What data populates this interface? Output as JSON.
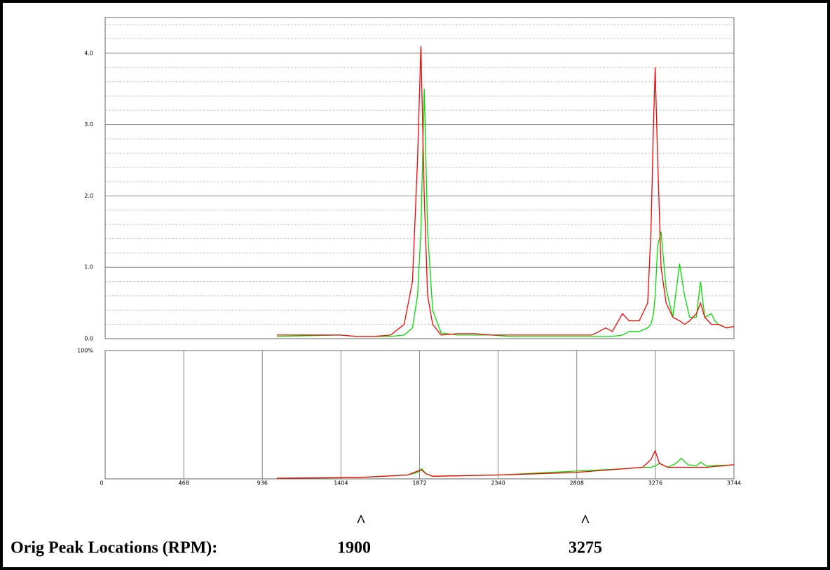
{
  "chart_data": [
    {
      "type": "line",
      "xlim": [
        0,
        3744
      ],
      "ylim": [
        0,
        4.5
      ],
      "yticks": [
        {
          "value": 0,
          "label": "0.0"
        },
        {
          "value": 1,
          "label": "1.0"
        },
        {
          "value": 2,
          "label": "2.0"
        },
        {
          "value": 3,
          "label": "3.0"
        },
        {
          "value": 4,
          "label": "4.0"
        }
      ],
      "yticks_minor": [
        0.2,
        0.4,
        0.6,
        0.8,
        1.2,
        1.4,
        1.6,
        1.8,
        2.2,
        2.4,
        2.6,
        2.8,
        3.2,
        3.4,
        3.6,
        3.8,
        4.2,
        4.4
      ],
      "grid": true,
      "x": [
        1022,
        1400,
        1500,
        1600,
        1700,
        1780,
        1830,
        1860,
        1880,
        1900,
        1920,
        1950,
        2000,
        2100,
        2200,
        2300,
        2400,
        2600,
        2800,
        2900,
        2980,
        3020,
        3080,
        3120,
        3180,
        3230,
        3250,
        3265,
        3275,
        3290,
        3310,
        3340,
        3380,
        3420,
        3450,
        3480,
        3520,
        3545,
        3570,
        3610,
        3630,
        3650,
        3700,
        3744
      ],
      "series": [
        {
          "color": "#00e000",
          "values": [
            0.03,
            0.05,
            0.03,
            0.03,
            0.03,
            0.05,
            0.15,
            0.6,
            1.5,
            3.5,
            1.5,
            0.4,
            0.08,
            0.05,
            0.05,
            0.05,
            0.03,
            0.03,
            0.03,
            0.03,
            0.03,
            0.03,
            0.05,
            0.1,
            0.1,
            0.15,
            0.2,
            0.35,
            0.6,
            1.3,
            1.5,
            0.7,
            0.3,
            1.05,
            0.6,
            0.3,
            0.3,
            0.8,
            0.3,
            0.35,
            0.25,
            0.2,
            0.15,
            0.17
          ]
        },
        {
          "color": "#ff0000",
          "values": [
            0.05,
            0.05,
            0.03,
            0.03,
            0.05,
            0.2,
            0.8,
            2.5,
            4.1,
            2.0,
            0.6,
            0.2,
            0.05,
            0.07,
            0.07,
            0.05,
            0.05,
            0.05,
            0.05,
            0.05,
            0.15,
            0.1,
            0.35,
            0.25,
            0.25,
            0.5,
            1.5,
            3.0,
            3.8,
            2.5,
            1.0,
            0.5,
            0.3,
            0.25,
            0.2,
            0.25,
            0.35,
            0.5,
            0.3,
            0.2,
            0.2,
            0.2,
            0.15,
            0.17
          ]
        }
      ]
    },
    {
      "type": "line",
      "xlim": [
        0,
        3744
      ],
      "xticks": [
        0,
        468,
        936,
        1404,
        1872,
        2340,
        2808,
        3276,
        3744
      ],
      "ylim": [
        0,
        100
      ],
      "yticks": [
        {
          "value": 100,
          "label": "100%"
        }
      ],
      "grid": true,
      "x": [
        1022,
        1500,
        1800,
        1860,
        1885,
        1910,
        1950,
        2340,
        2800,
        3100,
        3200,
        3250,
        3275,
        3300,
        3350,
        3400,
        3430,
        3470,
        3520,
        3545,
        3580,
        3744
      ],
      "series": [
        {
          "color": "#00e000",
          "values": [
            0.5,
            1,
            3,
            5,
            8,
            4,
            2,
            3,
            6,
            8,
            9,
            9,
            10,
            12,
            9,
            12,
            16,
            11,
            10,
            13,
            10,
            11
          ]
        },
        {
          "color": "#ff0000",
          "values": [
            0.5,
            1,
            3,
            6,
            7,
            4,
            2,
            3,
            5,
            8,
            9,
            15,
            22,
            12,
            9,
            9,
            9,
            9,
            9,
            9,
            9,
            11
          ]
        }
      ]
    }
  ],
  "annotation": {
    "label": "Orig Peak Locations (RPM):",
    "peaks": [
      {
        "caret": "^",
        "value": 1900
      },
      {
        "caret": "^",
        "value": 3275
      }
    ]
  }
}
